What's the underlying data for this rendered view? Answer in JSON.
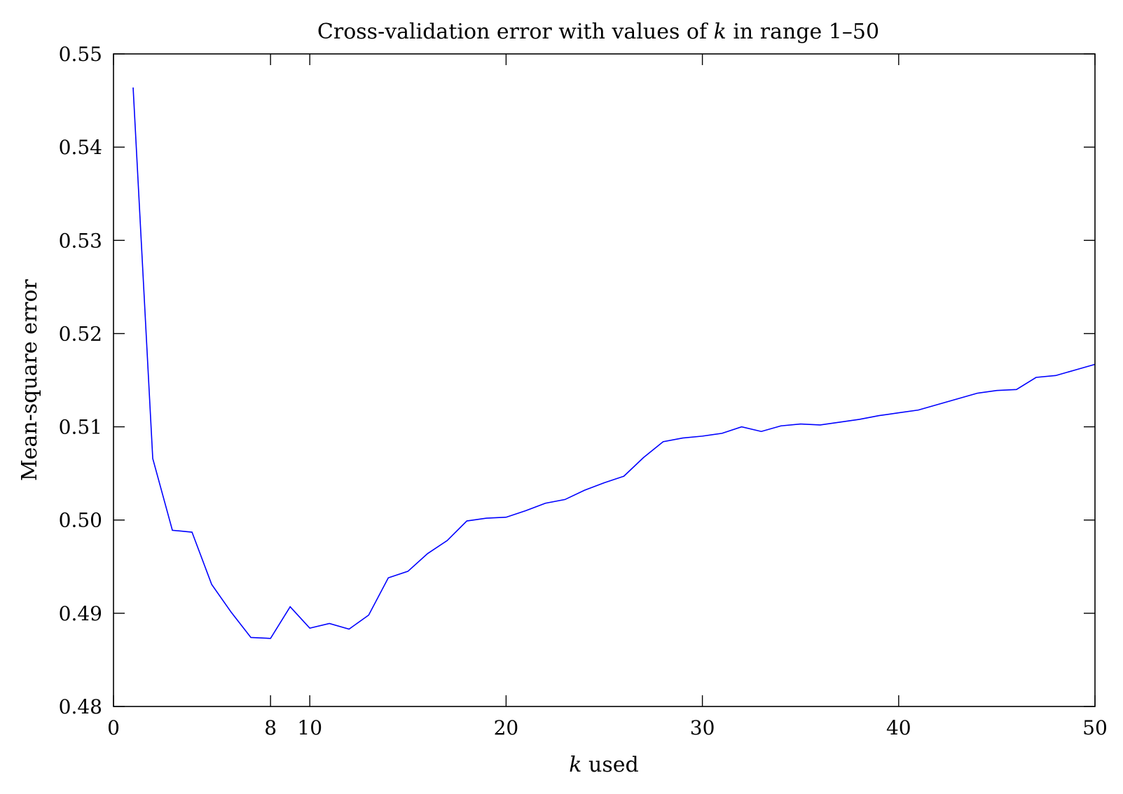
{
  "chart_data": {
    "type": "line",
    "title": {
      "before": "Cross-validation error with values of ",
      "italic": "k",
      "after": " in range 1–50"
    },
    "xlabel": {
      "italic": "k",
      "after": " used"
    },
    "ylabel": "Mean-square error",
    "xlim": [
      0,
      50
    ],
    "ylim": [
      0.48,
      0.55
    ],
    "xticks": [
      0,
      8,
      10,
      20,
      30,
      40,
      50
    ],
    "xtick_labels": [
      "0",
      "8",
      "10",
      "20",
      "30",
      "40",
      "50"
    ],
    "yticks": [
      0.48,
      0.49,
      0.5,
      0.51,
      0.52,
      0.53,
      0.54,
      0.55
    ],
    "ytick_labels": [
      "0.48",
      "0.49",
      "0.50",
      "0.51",
      "0.52",
      "0.53",
      "0.54",
      "0.55"
    ],
    "grid": false,
    "series": [
      {
        "color": "#0000ff",
        "x": [
          1,
          2,
          3,
          4,
          5,
          6,
          7,
          8,
          9,
          10,
          11,
          12,
          13,
          14,
          15,
          16,
          17,
          18,
          19,
          20,
          21,
          22,
          23,
          24,
          25,
          26,
          27,
          28,
          29,
          30,
          31,
          32,
          33,
          34,
          35,
          36,
          37,
          38,
          39,
          40,
          41,
          42,
          43,
          44,
          45,
          46,
          47,
          48,
          49,
          50
        ],
        "y": [
          0.5464,
          0.5066,
          0.4989,
          0.4987,
          0.4931,
          0.4901,
          0.4874,
          0.4873,
          0.4907,
          0.4884,
          0.4889,
          0.4883,
          0.4898,
          0.4938,
          0.4945,
          0.4964,
          0.4978,
          0.4999,
          0.5002,
          0.5003,
          0.501,
          0.5018,
          0.5022,
          0.5032,
          0.504,
          0.5047,
          0.5067,
          0.5084,
          0.5088,
          0.509,
          0.5093,
          0.51,
          0.5095,
          0.5101,
          0.5103,
          0.5102,
          0.5105,
          0.5108,
          0.5112,
          0.5115,
          0.5118,
          0.5124,
          0.513,
          0.5136,
          0.5139,
          0.514,
          0.5153,
          0.5155,
          0.5161,
          0.5167
        ]
      }
    ]
  }
}
